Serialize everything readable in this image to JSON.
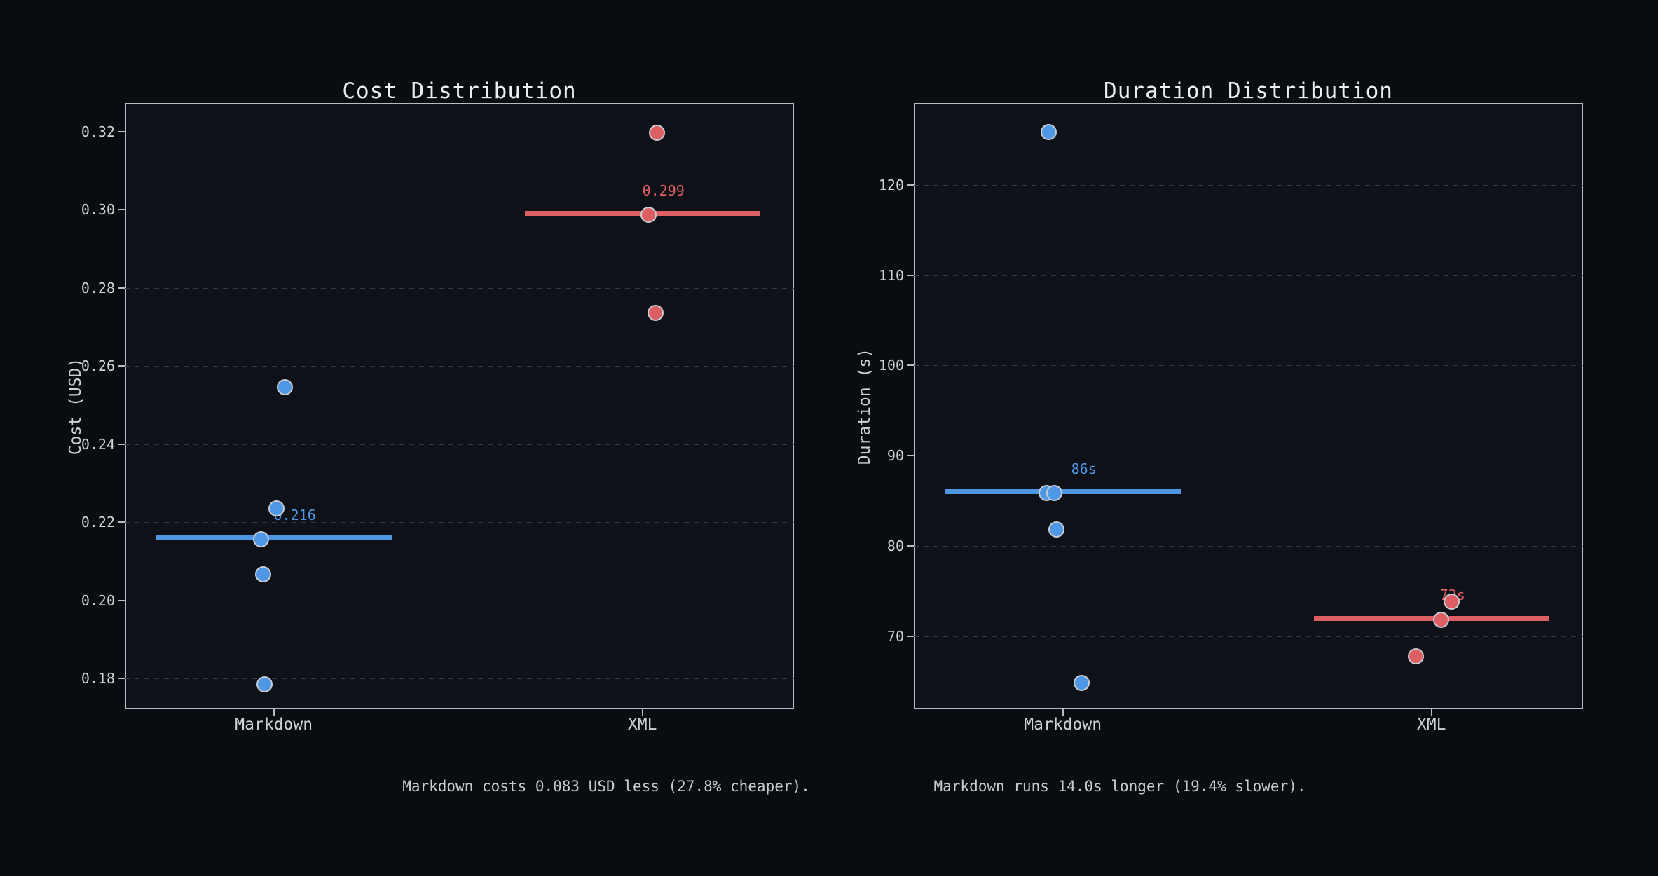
{
  "figure": {
    "background": "#090d12",
    "axes_background": "#0e1117",
    "spine_color": "#b6bcc3",
    "grid_color": "#343a42",
    "title_color": "#eceef0",
    "tick_label_color": "#cdd2d7",
    "caption_color": "#c6cbd0",
    "point_edge_color": "#c9cdd2",
    "markdown_color": "#4e97e4",
    "xml_color": "#dd5f63"
  },
  "chart_data": [
    {
      "type": "scatter",
      "variant": "strip-plot-with-median",
      "title": "Cost Distribution",
      "xlabel": "",
      "ylabel": "Cost (USD)",
      "categories": [
        "Markdown",
        "XML"
      ],
      "ylim": [
        0.1722,
        0.3273
      ],
      "yticks": [
        {
          "value": 0.18,
          "label": "0.18"
        },
        {
          "value": 0.2,
          "label": "0.20"
        },
        {
          "value": 0.22,
          "label": "0.22"
        },
        {
          "value": 0.24,
          "label": "0.24"
        },
        {
          "value": 0.26,
          "label": "0.26"
        },
        {
          "value": 0.28,
          "label": "0.28"
        },
        {
          "value": 0.3,
          "label": "0.30"
        },
        {
          "value": 0.32,
          "label": "0.32"
        }
      ],
      "grid": "dashed-horizontal",
      "legend": "none",
      "groups": [
        {
          "category": "Markdown",
          "color": "#4e97e4",
          "median": 0.216,
          "median_label": "0.216",
          "points": [
            {
              "value": 0.255,
              "dx": 14
            },
            {
              "value": 0.224,
              "dx": 2
            },
            {
              "value": 0.216,
              "dx": -20
            },
            {
              "value": 0.207,
              "dx": -17
            },
            {
              "value": 0.179,
              "dx": -15
            }
          ]
        },
        {
          "category": "XML",
          "color": "#dd5f63",
          "median": 0.299,
          "median_label": "0.299",
          "points": [
            {
              "value": 0.32,
              "dx": 19
            },
            {
              "value": 0.299,
              "dx": 7
            },
            {
              "value": 0.274,
              "dx": 17
            }
          ]
        }
      ]
    },
    {
      "type": "scatter",
      "variant": "strip-plot-with-median",
      "title": "Duration Distribution",
      "xlabel": "",
      "ylabel": "Duration (s)",
      "categories": [
        "Markdown",
        "XML"
      ],
      "ylim": [
        61.95,
        129.05
      ],
      "yticks": [
        {
          "value": 70,
          "label": "70"
        },
        {
          "value": 80,
          "label": "80"
        },
        {
          "value": 90,
          "label": "90"
        },
        {
          "value": 100,
          "label": "100"
        },
        {
          "value": 110,
          "label": "110"
        },
        {
          "value": 120,
          "label": "120"
        }
      ],
      "grid": "dashed-horizontal",
      "legend": "none",
      "groups": [
        {
          "category": "Markdown",
          "color": "#4e97e4",
          "median": 86,
          "median_label": "86s",
          "points": [
            {
              "value": 126,
              "dx": -22
            },
            {
              "value": 86,
              "dx": -25
            },
            {
              "value": 86,
              "dx": -14
            },
            {
              "value": 82,
              "dx": -11
            },
            {
              "value": 65,
              "dx": 25
            }
          ]
        },
        {
          "category": "XML",
          "color": "#dd5f63",
          "median": 72,
          "median_label": "72s",
          "points": [
            {
              "value": 74,
              "dx": 27
            },
            {
              "value": 72,
              "dx": 12
            },
            {
              "value": 68,
              "dx": -24
            }
          ]
        }
      ]
    }
  ],
  "captions": [
    {
      "text": "Markdown costs 0.083 USD less (27.8% cheaper)."
    },
    {
      "text": "Markdown runs 14.0s longer (19.4% slower)."
    }
  ]
}
